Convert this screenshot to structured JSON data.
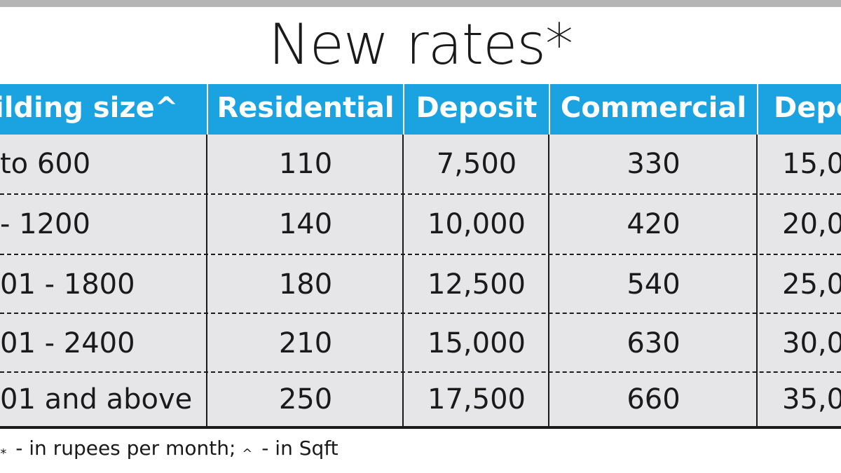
{
  "title": "New rates*",
  "colors": {
    "header_bg": "#1ba2e0",
    "header_text": "#ffffff",
    "row_bg": "#e6e6e8",
    "top_bar": "#b5b5b5",
    "text": "#1a1a1a"
  },
  "table": {
    "columns": [
      "ilding size^",
      "Residential",
      "Deposit",
      "Commercial",
      "Depo"
    ],
    "rows": [
      [
        "to 600",
        "110",
        "7,500",
        "330",
        "15,0"
      ],
      [
        "- 1200",
        "140",
        "10,000",
        "420",
        "20,0"
      ],
      [
        "01 - 1800",
        "180",
        "12,500",
        "540",
        "25,0"
      ],
      [
        "01 - 2400",
        "210",
        "15,000",
        "630",
        "30,0"
      ],
      [
        "01 and above",
        "250",
        "17,500",
        "660",
        "35,0"
      ]
    ]
  },
  "footnote": {
    "prefix": ":",
    "star_symbol": "*",
    "star_text": "- in rupees per month;",
    "caret_symbol": "^",
    "caret_text": "- in Sqft"
  }
}
